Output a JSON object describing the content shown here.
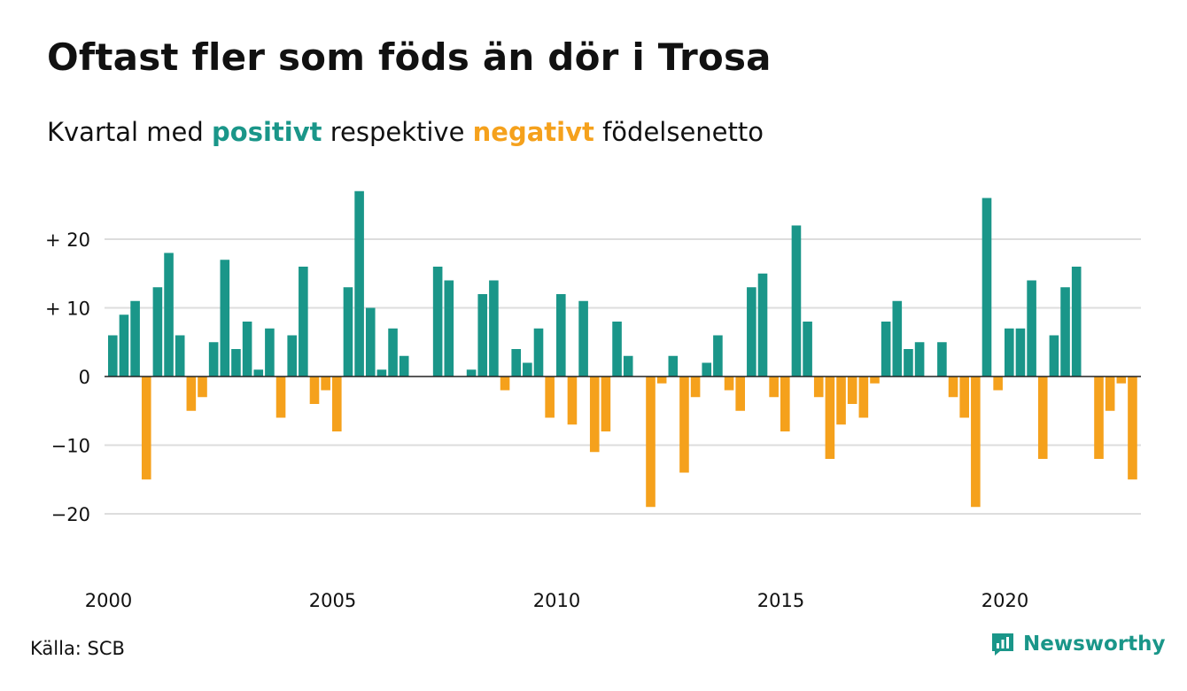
{
  "title": "Oftast fler som föds än dör i Trosa",
  "subtitle": {
    "prefix": "Kvartal med ",
    "positive_word": "positivt",
    "middle": " respektive ",
    "negative_word": "negativt",
    "suffix": " födelsenetto"
  },
  "source": "Källa: SCB",
  "brand": {
    "name": "Newsworthy",
    "icon": "newsworthy-logo-icon"
  },
  "colors": {
    "positive": "#1a9689",
    "negative": "#f5a11c",
    "grid": "#dddddd",
    "zero_line": "#222222",
    "brand": "#1a9689"
  },
  "chart_data": {
    "type": "bar",
    "title": "Oftast fler som föds än dör i Trosa",
    "subtitle": "Kvartal med positivt respektive negativt födelsenetto",
    "x_start_year": 2000,
    "quarters_per_year": 4,
    "x_ticks": [
      "2000",
      "2005",
      "2010",
      "2015",
      "2020"
    ],
    "y_ticks": [
      {
        "value": 20,
        "label": "+ 20"
      },
      {
        "value": 10,
        "label": "+ 10"
      },
      {
        "value": 0,
        "label": "0"
      },
      {
        "value": -10,
        "label": "−10"
      },
      {
        "value": -20,
        "label": "−20"
      }
    ],
    "ylim": [
      -28,
      27
    ],
    "grid": true,
    "values": [
      6,
      9,
      11,
      -15,
      13,
      18,
      6,
      -5,
      -3,
      5,
      17,
      4,
      8,
      1,
      7,
      -6,
      6,
      16,
      -4,
      -2,
      -8,
      13,
      27,
      10,
      1,
      7,
      3,
      0,
      0,
      16,
      14,
      0,
      1,
      12,
      14,
      -2,
      4,
      2,
      7,
      -6,
      12,
      -7,
      11,
      -11,
      -8,
      8,
      3,
      0,
      -19,
      -1,
      3,
      -14,
      -3,
      2,
      6,
      -2,
      -5,
      13,
      15,
      -3,
      -8,
      22,
      8,
      -3,
      -12,
      -7,
      -4,
      -6,
      -1,
      8,
      11,
      4,
      5,
      0,
      5,
      -3,
      -6,
      -19,
      26,
      -2,
      7,
      7,
      14,
      -12,
      6,
      13,
      16,
      0,
      -12,
      -5,
      -1,
      -15
    ]
  }
}
